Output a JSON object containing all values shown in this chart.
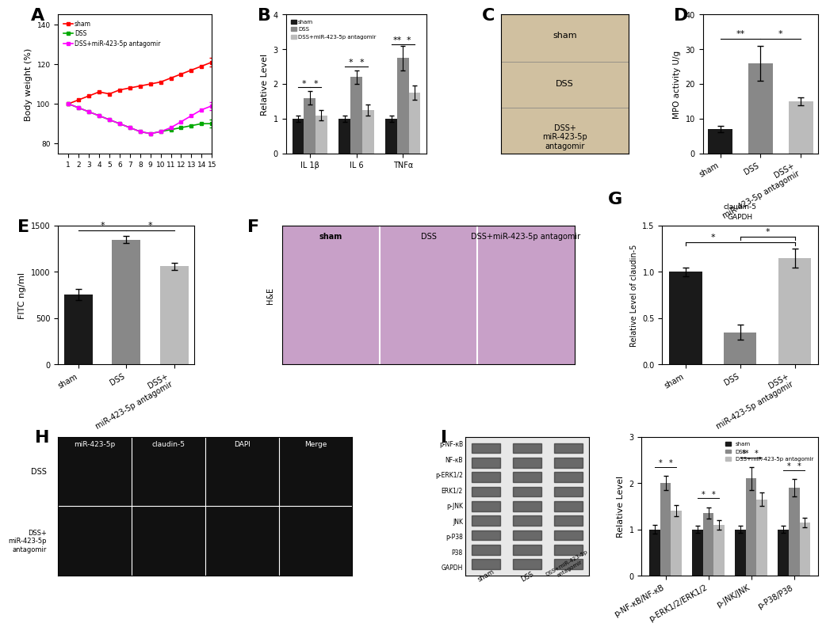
{
  "panel_A": {
    "title": "A",
    "xlabel": "",
    "ylabel": "Body weight (%)",
    "xlim": [
      0,
      15
    ],
    "ylim": [
      75,
      145
    ],
    "yticks": [
      80,
      100,
      120,
      140
    ],
    "xticks": [
      1,
      2,
      3,
      4,
      5,
      6,
      7,
      8,
      9,
      10,
      11,
      12,
      13,
      14,
      15
    ],
    "series": {
      "sham": {
        "x": [
          1,
          2,
          3,
          4,
          5,
          6,
          7,
          8,
          9,
          10,
          11,
          12,
          13,
          14,
          15
        ],
        "y": [
          100,
          102,
          104,
          106,
          105,
          107,
          108,
          109,
          110,
          111,
          113,
          115,
          117,
          119,
          121
        ],
        "color": "#FF0000",
        "marker": "s",
        "label": "sham"
      },
      "DSS": {
        "x": [
          1,
          2,
          3,
          4,
          5,
          6,
          7,
          8,
          9,
          10,
          11,
          12,
          13,
          14,
          15
        ],
        "y": [
          100,
          98,
          96,
          94,
          92,
          90,
          88,
          86,
          85,
          86,
          87,
          88,
          89,
          90,
          90
        ],
        "color": "#00AA00",
        "marker": "s",
        "label": "DSS"
      },
      "DSS_antagomir": {
        "x": [
          1,
          2,
          3,
          4,
          5,
          6,
          7,
          8,
          9,
          10,
          11,
          12,
          13,
          14,
          15
        ],
        "y": [
          100,
          98,
          96,
          94,
          92,
          90,
          88,
          86,
          85,
          86,
          88,
          91,
          94,
          97,
          99
        ],
        "color": "#FF00FF",
        "marker": "s",
        "label": "DSS+miR-423-5p antagomir"
      }
    }
  },
  "panel_B": {
    "title": "B",
    "ylabel": "Relative Level",
    "ylim": [
      0,
      4
    ],
    "yticks": [
      0,
      1,
      2,
      3,
      4
    ],
    "groups": [
      "IL 1β",
      "IL 6",
      "TNFα"
    ],
    "sham": [
      1.0,
      1.0,
      1.0
    ],
    "DSS": [
      1.6,
      2.2,
      2.75
    ],
    "DSS_antagomir": [
      1.1,
      1.25,
      1.75
    ],
    "sham_err": [
      0.1,
      0.1,
      0.1
    ],
    "DSS_err": [
      0.2,
      0.2,
      0.35
    ],
    "DSS_antagomir_err": [
      0.15,
      0.15,
      0.2
    ],
    "colors": {
      "sham": "#1a1a1a",
      "DSS": "#888888",
      "DSS_antagomir": "#bbbbbb"
    },
    "legend": [
      "sham",
      "DSS",
      "DSS+miR-423-5p antagomir"
    ]
  },
  "panel_D": {
    "title": "D",
    "ylabel": "MPO activity U/g",
    "ylim": [
      0,
      40
    ],
    "yticks": [
      0,
      10,
      20,
      30,
      40
    ],
    "categories": [
      "sham",
      "DSS",
      "DSS+\nmiR-423-5p antagomir"
    ],
    "values": [
      7,
      26,
      15
    ],
    "errors": [
      1.0,
      5.0,
      1.2
    ],
    "colors": [
      "#1a1a1a",
      "#888888",
      "#bbbbbb"
    ]
  },
  "panel_E": {
    "title": "E",
    "ylabel": "FITC ng/ml",
    "ylim": [
      0,
      1500
    ],
    "yticks": [
      0,
      500,
      1000,
      1500
    ],
    "categories": [
      "sham",
      "DSS",
      "DSS+\nmiR-423-5p antagomir"
    ],
    "values": [
      760,
      1350,
      1060
    ],
    "errors": [
      60,
      40,
      40
    ],
    "colors": [
      "#1a1a1a",
      "#888888",
      "#bbbbbb"
    ]
  },
  "panel_G": {
    "title": "G",
    "ylabel": "Relative Level of claudin-5",
    "ylim": [
      0.0,
      1.5
    ],
    "yticks": [
      0.0,
      0.5,
      1.0,
      1.5
    ],
    "categories": [
      "sham",
      "DSS",
      "DSS+\nmiR-423-5p antagomir"
    ],
    "values": [
      1.0,
      0.35,
      1.15
    ],
    "errors": [
      0.05,
      0.08,
      0.1
    ],
    "colors": [
      "#1a1a1a",
      "#888888",
      "#bbbbbb"
    ]
  },
  "panel_I": {
    "title": "I",
    "ylabel": "Relative Level",
    "ylim": [
      0,
      3
    ],
    "yticks": [
      0,
      1,
      2,
      3
    ],
    "groups": [
      "p-NF-κB/NF-κB",
      "p-ERK1/2/ERK1/2",
      "p-JNK/JNK",
      "p-P38/P38"
    ],
    "sham": [
      1.0,
      1.0,
      1.0,
      1.0
    ],
    "DSS": [
      2.0,
      1.35,
      2.1,
      1.9
    ],
    "DSS_antagomir": [
      1.4,
      1.1,
      1.65,
      1.15
    ],
    "sham_err": [
      0.1,
      0.08,
      0.08,
      0.08
    ],
    "DSS_err": [
      0.15,
      0.12,
      0.25,
      0.18
    ],
    "DSS_antagomir_err": [
      0.12,
      0.1,
      0.15,
      0.1
    ],
    "colors": {
      "sham": "#1a1a1a",
      "DSS": "#888888",
      "DSS_antagomir": "#bbbbbb"
    },
    "legend": [
      "sham",
      "DSS",
      "DSS+miR-423-5p antagomir"
    ]
  },
  "background_color": "#ffffff",
  "label_fontsize": 16,
  "tick_fontsize": 8,
  "axis_label_fontsize": 9
}
